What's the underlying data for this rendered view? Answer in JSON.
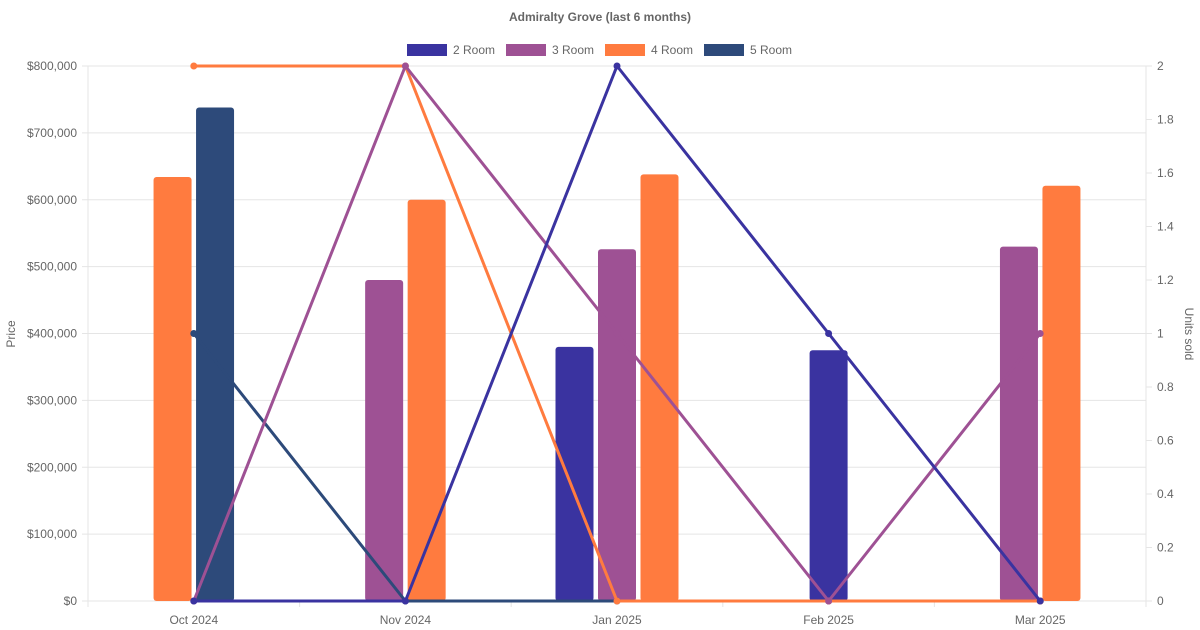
{
  "chart_data": {
    "type": "bar",
    "title": "Admiralty Grove (last 6 months)",
    "categories": [
      "Oct 2024",
      "Nov 2024",
      "Jan 2025",
      "Feb 2025",
      "Mar 2025"
    ],
    "ylabel": "Price",
    "y2label": "Units sold",
    "ylim": [
      0,
      800000
    ],
    "y2lim": [
      0,
      2
    ],
    "y_ticks": [
      "$0",
      "$100,000",
      "$200,000",
      "$300,000",
      "$400,000",
      "$500,000",
      "$600,000",
      "$700,000",
      "$800,000"
    ],
    "y2_ticks": [
      "0",
      "0.2",
      "0.4",
      "0.6",
      "0.8",
      "1",
      "1.2",
      "1.4",
      "1.6",
      "1.8",
      "2"
    ],
    "grid": true,
    "legend_position": "top",
    "series": [
      {
        "name": "2 Room",
        "color": "#3a33a0",
        "prices": [
          null,
          null,
          380000,
          375000,
          null
        ],
        "units": [
          0,
          0,
          2,
          1,
          0
        ]
      },
      {
        "name": "3 Room",
        "color": "#9e5194",
        "prices": [
          null,
          480000,
          526000,
          null,
          530000
        ],
        "units": [
          0,
          2,
          1,
          0,
          1
        ]
      },
      {
        "name": "4 Room",
        "color": "#ff7b3f",
        "prices": [
          634000,
          600000,
          638000,
          null,
          621000
        ],
        "units": [
          2,
          2,
          0,
          0,
          0
        ]
      },
      {
        "name": "5 Room",
        "color": "#2d4a7a",
        "prices": [
          738000,
          null,
          null,
          null,
          null
        ],
        "units": [
          1,
          0,
          0,
          0,
          0
        ]
      }
    ]
  }
}
